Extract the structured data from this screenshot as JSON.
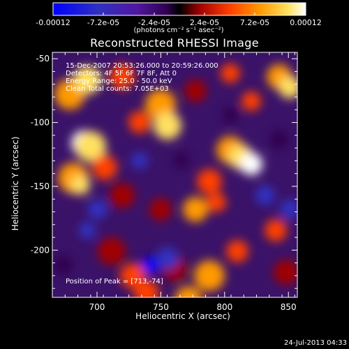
{
  "colorbar": {
    "ticks": [
      "-0.00012",
      "-7.2e-05",
      "-2.4e-05",
      "2.4e-05",
      "7.2e-05",
      "0.00012"
    ],
    "units_label": "(photons cm⁻² s⁻¹ asec⁻²)"
  },
  "chart_data": {
    "type": "heatmap",
    "title": "Reconstructed RHESSI Image",
    "xlabel": "Heliocentric X (arcsec)",
    "ylabel": "Heliocentric Y (arcsec)",
    "xlim": [
      665,
      857
    ],
    "ylim": [
      -237,
      -45
    ],
    "xticks": [
      700,
      750,
      800,
      850
    ],
    "yticks": [
      -50,
      -100,
      -150,
      -200
    ],
    "colorbar_range": [
      -0.00012,
      0.00012
    ],
    "colormap": [
      "#0000ff",
      "#3030c0",
      "#5018a0",
      "#300050",
      "#000000",
      "#a00000",
      "#ff4000",
      "#ff9a00",
      "#ffe060",
      "#ffffff"
    ],
    "peak": [
      713,
      -74
    ],
    "annotations": [
      "15-Dec-2007 20:53:26.000 to 20:59:26.000",
      "Detectors: 4F 5F 6F 7F 8F, Att 0",
      "Energy Range: 25.0 - 50.0 keV",
      "Clean    Total counts: 7.05E+03",
      "Position of Peak = [713,-74]"
    ]
  },
  "footer": {
    "date": "24-Jul-2013 04:33"
  }
}
